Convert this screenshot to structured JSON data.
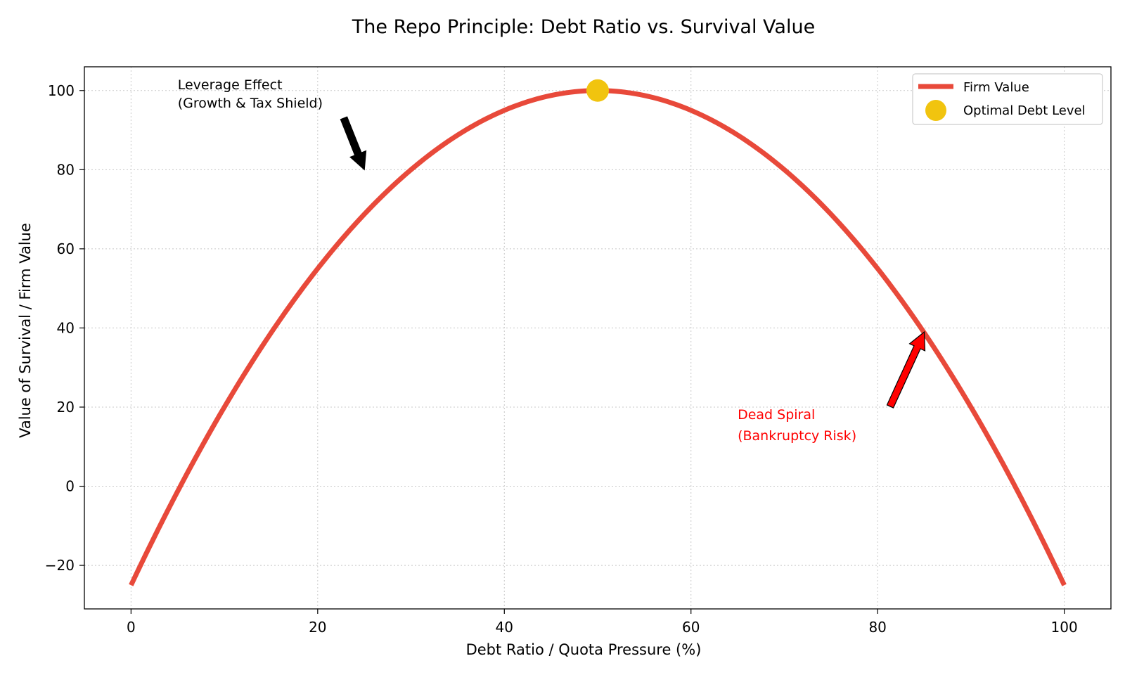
{
  "chart_data": {
    "type": "line",
    "title": "The Repo Principle: Debt Ratio vs. Survival Value",
    "xlabel": "Debt Ratio / Quota Pressure (%)",
    "ylabel": "Value of Survival / Firm Value",
    "xlim": [
      -5,
      105
    ],
    "ylim": [
      -31,
      106
    ],
    "x_ticks": [
      0,
      20,
      40,
      60,
      80,
      100
    ],
    "y_ticks": [
      -20,
      0,
      20,
      40,
      60,
      80,
      100
    ],
    "x_tick_labels": [
      "0",
      "20",
      "40",
      "60",
      "80",
      "100"
    ],
    "y_tick_labels": [
      "−20",
      "0",
      "20",
      "40",
      "60",
      "80",
      "100"
    ],
    "grid": true,
    "legend_position": "top-right",
    "series": [
      {
        "name": "Firm Value",
        "type": "line",
        "color": "#e8493a",
        "curve": "y = 100 - 0.05 * (x - 50)^2",
        "x": [
          0,
          5,
          10,
          15,
          20,
          25,
          30,
          35,
          40,
          45,
          50,
          55,
          60,
          65,
          70,
          75,
          80,
          85,
          90,
          95,
          100
        ],
        "y": [
          -25,
          -1.25,
          20,
          38.75,
          55,
          68.75,
          80,
          88.75,
          95,
          98.75,
          100,
          98.75,
          95,
          88.75,
          80,
          68.75,
          55,
          38.75,
          20,
          -1.25,
          -25
        ]
      },
      {
        "name": "Optimal Debt Level",
        "type": "scatter",
        "color": "#f1c40f",
        "points": [
          {
            "x": 50,
            "y": 100
          }
        ]
      }
    ],
    "annotations": [
      {
        "lines": [
          "Leverage Effect",
          "(Growth & Tax Shield)"
        ],
        "text_at": [
          5,
          92
        ],
        "arrow_to": [
          25,
          80
        ],
        "color": "#000000",
        "arrow_color": "#000000"
      },
      {
        "lines": [
          "Dead Spiral",
          "(Bankruptcy Risk)"
        ],
        "text_at": [
          65,
          12
        ],
        "arrow_to": [
          85,
          39
        ],
        "color": "#ff0000",
        "arrow_color": "#ff0000"
      }
    ]
  }
}
